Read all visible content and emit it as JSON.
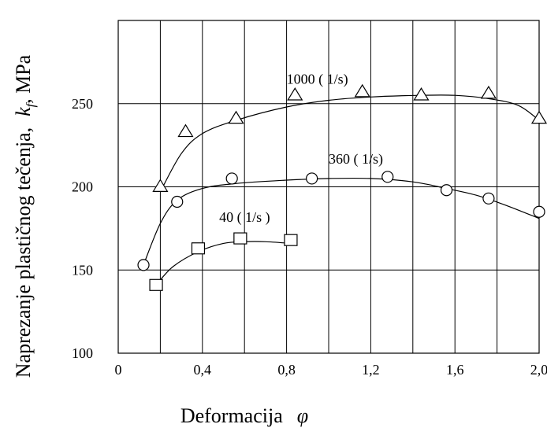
{
  "chart_data": {
    "type": "scatter",
    "xlabel": "Deformacija",
    "xlabel_symbol": "φ",
    "ylabel": "Naprezanje plastičnog tečenja,",
    "ylabel_symbol": "k",
    "ylabel_symbol_sub": "f",
    "ylabel_unit": ", MPa",
    "xlim": [
      0,
      2.0
    ],
    "ylim": [
      100,
      300
    ],
    "x_ticks": [
      {
        "value": 0,
        "label": "0"
      },
      {
        "value": 0.4,
        "label": "0,4"
      },
      {
        "value": 0.8,
        "label": "0,8"
      },
      {
        "value": 1.2,
        "label": "1,2"
      },
      {
        "value": 1.6,
        "label": "1,6"
      },
      {
        "value": 2.0,
        "label": "2,0"
      }
    ],
    "y_ticks": [
      {
        "value": 100,
        "label": "100"
      },
      {
        "value": 150,
        "label": "150"
      },
      {
        "value": 200,
        "label": "200"
      },
      {
        "value": 250,
        "label": "250"
      }
    ],
    "grid": {
      "vertical_step": 0.2,
      "horizontal_values": [
        150,
        200,
        250
      ]
    },
    "series": [
      {
        "name": "1000 ( 1/s)",
        "marker": "triangle",
        "points": [
          [
            0.2,
            200
          ],
          [
            0.32,
            233
          ],
          [
            0.56,
            241
          ],
          [
            0.84,
            255
          ],
          [
            1.16,
            257
          ],
          [
            1.44,
            255
          ],
          [
            1.76,
            256
          ],
          [
            2.0,
            241
          ]
        ],
        "curve": [
          [
            0.2,
            197
          ],
          [
            0.3,
            220
          ],
          [
            0.4,
            232
          ],
          [
            0.56,
            240
          ],
          [
            0.8,
            248
          ],
          [
            1.0,
            252
          ],
          [
            1.2,
            254
          ],
          [
            1.44,
            255
          ],
          [
            1.6,
            255
          ],
          [
            1.76,
            253
          ],
          [
            1.9,
            249
          ],
          [
            2.0,
            240
          ]
        ],
        "label_at": [
          0.8,
          262
        ]
      },
      {
        "name": "360 ( 1/s)",
        "marker": "circle",
        "points": [
          [
            0.12,
            153
          ],
          [
            0.28,
            191
          ],
          [
            0.54,
            205
          ],
          [
            0.92,
            205
          ],
          [
            1.28,
            206
          ],
          [
            1.56,
            198
          ],
          [
            1.76,
            193
          ],
          [
            2.0,
            185
          ]
        ],
        "curve": [
          [
            0.12,
            153
          ],
          [
            0.2,
            178
          ],
          [
            0.28,
            192
          ],
          [
            0.4,
            199
          ],
          [
            0.56,
            202
          ],
          [
            0.8,
            204
          ],
          [
            1.0,
            205
          ],
          [
            1.2,
            205
          ],
          [
            1.4,
            203
          ],
          [
            1.56,
            199
          ],
          [
            1.7,
            195
          ],
          [
            1.84,
            189
          ],
          [
            2.0,
            181
          ]
        ],
        "label_at": [
          1.0,
          214
        ]
      },
      {
        "name": "40 ( 1/s )",
        "marker": "square",
        "points": [
          [
            0.18,
            141
          ],
          [
            0.38,
            163
          ],
          [
            0.58,
            169
          ],
          [
            0.82,
            168
          ]
        ],
        "curve": [
          [
            0.18,
            141
          ],
          [
            0.26,
            152
          ],
          [
            0.38,
            161
          ],
          [
            0.5,
            166
          ],
          [
            0.6,
            167
          ],
          [
            0.7,
            167
          ],
          [
            0.82,
            166
          ]
        ],
        "label_at": [
          0.48,
          179
        ]
      }
    ]
  }
}
